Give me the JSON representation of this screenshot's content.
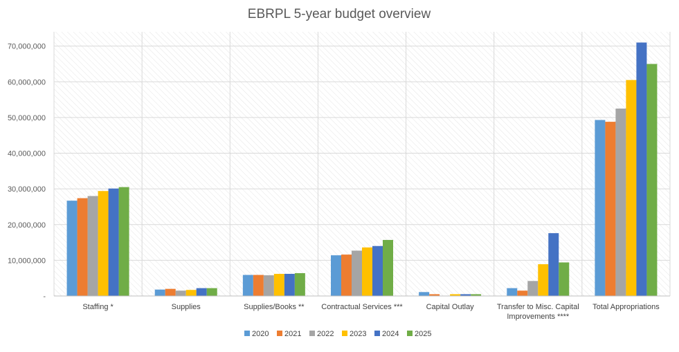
{
  "chart_data": {
    "type": "bar",
    "title": "EBRPL 5-year budget overview",
    "xlabel": "",
    "ylabel": "",
    "ylim": [
      0,
      70000000
    ],
    "yticks": [
      0,
      10000000,
      20000000,
      30000000,
      40000000,
      50000000,
      60000000,
      70000000
    ],
    "ytick_labels": [
      "-",
      "10,000,000",
      "20,000,000",
      "30,000,000",
      "40,000,000",
      "50,000,000",
      "60,000,000",
      "70,000,000"
    ],
    "grid": true,
    "legend_position": "bottom",
    "categories": [
      [
        "Staffing *"
      ],
      [
        "Supplies"
      ],
      [
        "Supplies/Books **"
      ],
      [
        "Contractual Services ***"
      ],
      [
        "Capital Outlay"
      ],
      [
        "Transfer to Misc. Capital",
        "Improvements ****"
      ],
      [
        "Total Appropriations"
      ]
    ],
    "series": [
      {
        "name": "2020",
        "color": "#5B9BD5",
        "values": [
          26700000,
          1800000,
          5900000,
          11400000,
          1100000,
          2200000,
          49300000
        ]
      },
      {
        "name": "2021",
        "color": "#ED7D31",
        "values": [
          27400000,
          2000000,
          5900000,
          11600000,
          500000,
          1500000,
          48800000
        ]
      },
      {
        "name": "2022",
        "color": "#A5A5A5",
        "values": [
          28000000,
          1500000,
          5800000,
          12700000,
          0,
          4200000,
          52500000
        ]
      },
      {
        "name": "2023",
        "color": "#FFC000",
        "values": [
          29400000,
          1700000,
          6200000,
          13600000,
          500000,
          8900000,
          60500000
        ]
      },
      {
        "name": "2024",
        "color": "#4472C4",
        "values": [
          30100000,
          2200000,
          6200000,
          14000000,
          500000,
          17600000,
          71000000
        ]
      },
      {
        "name": "2025",
        "color": "#70AD47",
        "values": [
          30500000,
          2200000,
          6400000,
          15700000,
          500000,
          9400000,
          65000000
        ]
      }
    ]
  }
}
